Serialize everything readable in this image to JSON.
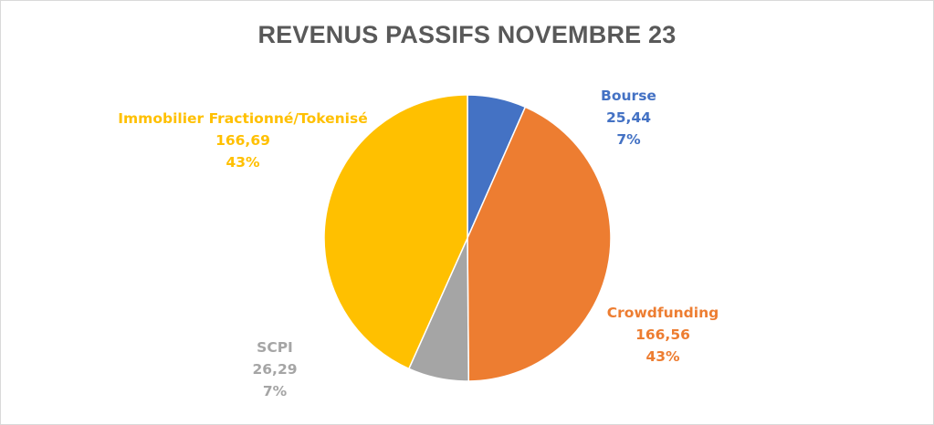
{
  "chart_data": {
    "type": "pie",
    "title": "REVENUS PASSIFS NOVEMBRE 23",
    "slices": [
      {
        "name": "Bourse",
        "value": 25.44,
        "value_label": "25,44",
        "percent_label": "7%",
        "color": "#4472c4"
      },
      {
        "name": "Crowdfunding",
        "value": 166.56,
        "value_label": "166,56",
        "percent_label": "43%",
        "color": "#ed7d31"
      },
      {
        "name": "SCPI",
        "value": 26.29,
        "value_label": "26,29",
        "percent_label": "7%",
        "color": "#a5a5a5"
      },
      {
        "name": "Immobilier Fractionné/Tokenisé",
        "value": 166.69,
        "value_label": "166,69",
        "percent_label": "43%",
        "color": "#ffc000"
      }
    ],
    "legend": "none",
    "data_labels": "outside"
  }
}
